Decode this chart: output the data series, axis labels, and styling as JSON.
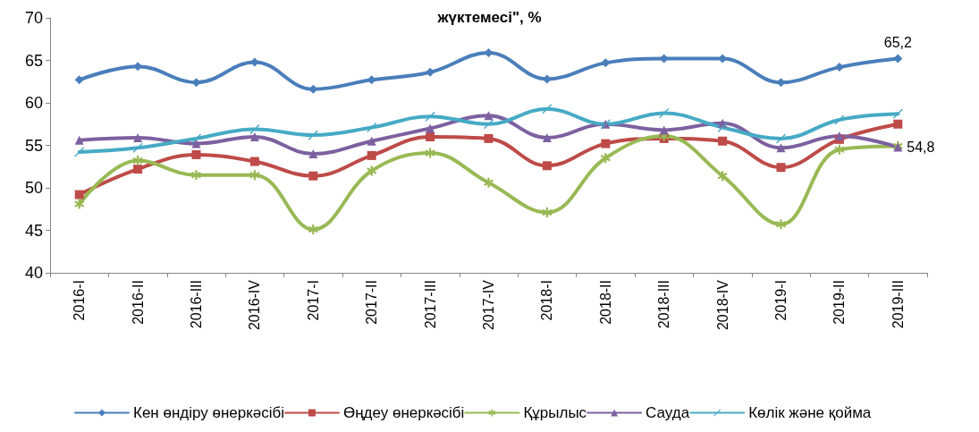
{
  "chart_data": {
    "type": "line",
    "title": "жүктемесі\", %",
    "categories": [
      "2016-I",
      "2016-II",
      "2016-III",
      "2016-IV",
      "2017-I",
      "2017-II",
      "2017-III",
      "2017-IV",
      "2018-I",
      "2018-II",
      "2018-III",
      "2018-IV",
      "2019-I",
      "2019-II",
      "2019-III"
    ],
    "series": [
      {
        "name": "Кен өндіру өнеркәсібі",
        "color": "#4a7ebb",
        "marker": "diamond",
        "values": [
          62.7,
          64.3,
          62.4,
          64.8,
          61.6,
          62.7,
          63.6,
          65.9,
          62.8,
          64.7,
          65.2,
          65.2,
          62.4,
          64.2,
          65.2
        ],
        "value_labels": [
          null,
          null,
          null,
          null,
          null,
          null,
          null,
          null,
          null,
          null,
          null,
          null,
          null,
          null,
          "65,2"
        ]
      },
      {
        "name": "Өңдеу өнеркәсібі",
        "color": "#be4b48",
        "marker": "square",
        "values": [
          49.2,
          52.2,
          53.9,
          53.1,
          51.4,
          53.8,
          56.0,
          55.8,
          52.6,
          55.2,
          55.8,
          55.5,
          52.4,
          55.7,
          57.5
        ]
      },
      {
        "name": "Құрылыс",
        "color": "#98b954",
        "marker": "star",
        "values": [
          48.1,
          53.2,
          51.5,
          51.5,
          45.1,
          52.0,
          54.1,
          50.6,
          47.1,
          53.5,
          56.1,
          51.4,
          45.7,
          54.5,
          54.9
        ]
      },
      {
        "name": "Сауда",
        "color": "#7d60a0",
        "marker": "triangle",
        "values": [
          55.6,
          55.9,
          55.2,
          56.0,
          54.0,
          55.5,
          57.0,
          58.5,
          55.9,
          57.5,
          56.8,
          57.6,
          54.7,
          56.1,
          54.8
        ],
        "value_labels": [
          null,
          null,
          null,
          null,
          null,
          null,
          null,
          null,
          null,
          null,
          null,
          null,
          null,
          null,
          "54,8"
        ]
      },
      {
        "name": "Көлік және қойма",
        "color": "#46aac5",
        "marker": "cross",
        "values": [
          54.2,
          54.7,
          55.8,
          56.9,
          56.2,
          57.1,
          58.4,
          57.5,
          59.3,
          57.5,
          58.8,
          57.1,
          55.8,
          58.0,
          58.7
        ]
      }
    ],
    "ylim": [
      40,
      70
    ],
    "yticks": [
      40,
      45,
      50,
      55,
      60,
      65,
      70
    ],
    "grid": false,
    "legend": "bottom",
    "line_style": "solid"
  }
}
